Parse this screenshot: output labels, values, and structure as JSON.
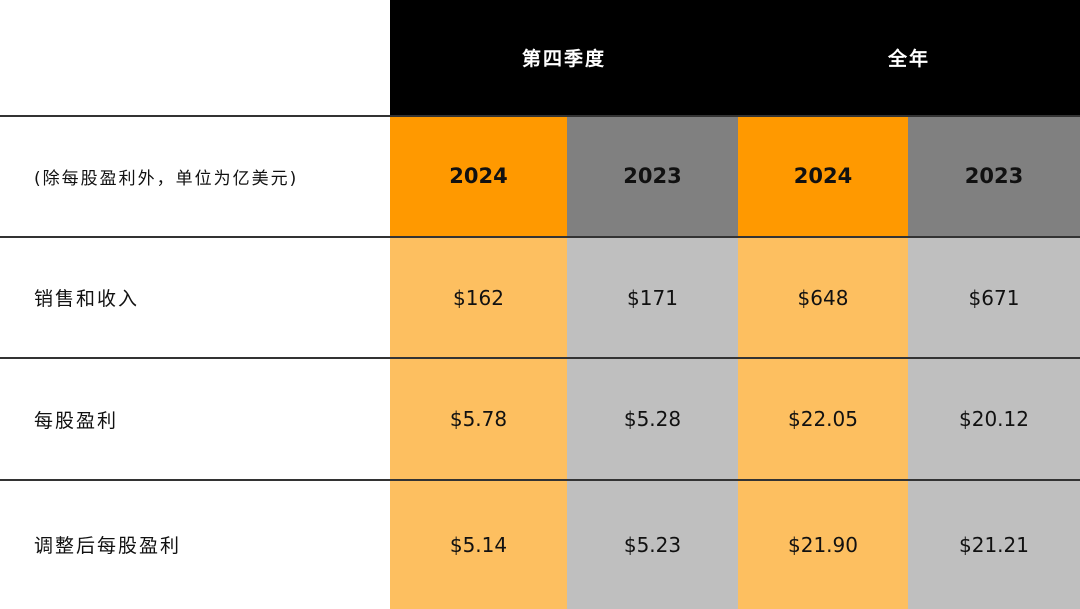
{
  "chart_data": {
    "type": "table",
    "group_headers": [
      "第四季度",
      "全年"
    ],
    "unit_label": "(除每股盈利外，单位为亿美元)",
    "columns": [
      "2024",
      "2023",
      "2024",
      "2023"
    ],
    "rows": [
      {
        "label": "销售和收入",
        "values": [
          "$162",
          "$171",
          "$648",
          "$671"
        ]
      },
      {
        "label": "每股盈利",
        "values": [
          "$5.78",
          "$5.28",
          "$22.05",
          "$20.12"
        ]
      },
      {
        "label": "调整后每股盈利",
        "values": [
          "$5.14",
          "$5.23",
          "$21.90",
          "$21.21"
        ]
      }
    ],
    "colors": {
      "header_bg": "#000000",
      "year_2024_bg": "#FF9900",
      "year_2023_bg": "#808080",
      "value_2024_bg": "#FDBF60",
      "value_2023_bg": "#BFBFBF"
    }
  }
}
